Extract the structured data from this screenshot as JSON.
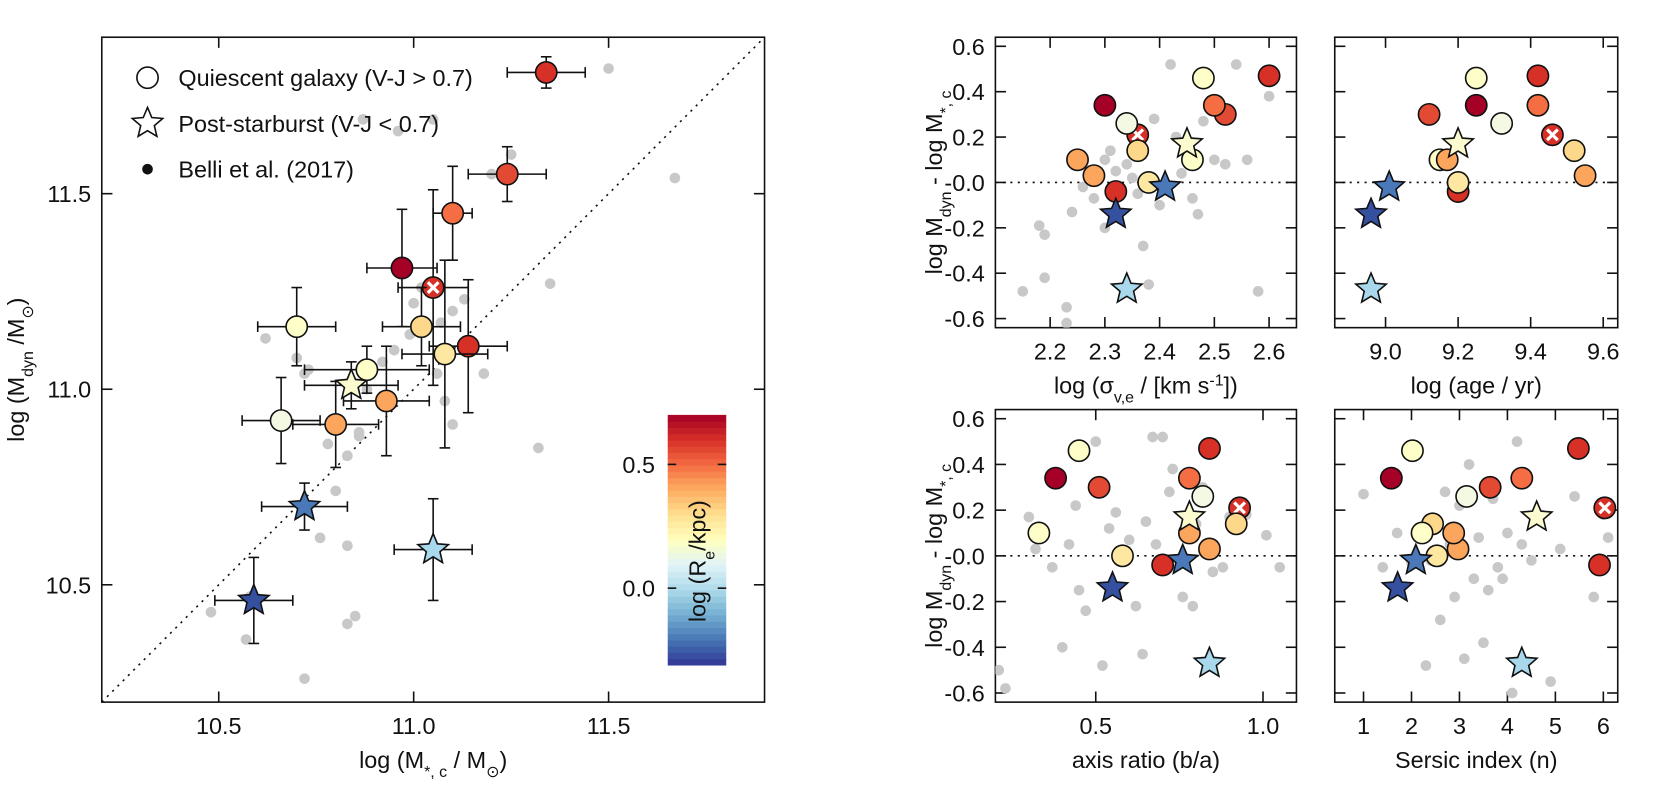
{
  "chart_data": [
    {
      "type": "scatter",
      "xlabel": [
        "log (M",
        "*, c",
        " / M",
        "⊙",
        ")"
      ],
      "ylabel": [
        "log (M",
        "dyn",
        " /M",
        "⊙",
        ")"
      ],
      "xlim": [
        10.2,
        11.9
      ],
      "ylim": [
        10.2,
        11.9
      ],
      "xticks": [
        10.5,
        {
          "value": 11,
          "label": "11.0"
        },
        11.5
      ],
      "yticks": [
        10.5,
        {
          "value": 11,
          "label": "11.0"
        },
        11.5
      ],
      "diagonal": true,
      "legend": "upper left",
      "series": [
        {
          "name": "Quiescent galaxy (V-J > 0.7)",
          "marker": "circle",
          "x": [
            11.34,
            11.24,
            11.1,
            10.97,
            11.05,
            10.7,
            11.02,
            11.14,
            11.08,
            10.88,
            10.93,
            10.66,
            10.8
          ],
          "y": [
            11.81,
            11.55,
            11.45,
            11.31,
            11.26,
            11.16,
            11.16,
            11.11,
            11.09,
            11.05,
            10.97,
            10.92,
            10.91
          ],
          "xerr": [
            0.1,
            0.1,
            0.05,
            0.09,
            0.09,
            0.1,
            0.1,
            0.1,
            0.11,
            0.16,
            0.11,
            0.1,
            0.11
          ],
          "yerr": [
            0.04,
            0.07,
            0.12,
            0.15,
            0.25,
            0.1,
            0.1,
            0.17,
            0.24,
            0.06,
            0.14,
            0.11,
            0.11
          ],
          "colors": [
            "#d73027",
            "#e34a33",
            "#f46d43",
            "#a50026",
            "#d73027",
            "#fefec8",
            "#fdd88a",
            "#d73027",
            "#fee7a0",
            "#fefec8",
            "#fca55d",
            "#f3f9e3",
            "#fca55d"
          ],
          "markers": [
            "circle",
            "circle",
            "circle",
            "circle",
            "crossed",
            "circle",
            "circle",
            "circle",
            "circle",
            "circle",
            "circle",
            "circle",
            "circle"
          ]
        },
        {
          "name": "Post-starburst (V-J < 0.7)",
          "marker": "star",
          "x": [
            10.84,
            10.72,
            11.05,
            10.59
          ],
          "y": [
            11.01,
            10.7,
            10.59,
            10.46
          ],
          "xerr": [
            0.12,
            0.11,
            0.1,
            0.1
          ],
          "yerr": [
            0.06,
            0.06,
            0.13,
            0.11
          ],
          "colors": [
            "#fcfbd0",
            "#4a78b8",
            "#a9d8ec",
            "#34509f"
          ]
        },
        {
          "name": "Belli et al. (2017)",
          "marker": "dot",
          "color": "#c8c8c8",
          "x": [
            10.48,
            10.57,
            10.58,
            10.72,
            10.76,
            10.83,
            10.85,
            10.83,
            10.8,
            10.78,
            10.83,
            10.86,
            10.62,
            10.7,
            10.72,
            10.73,
            10.86,
            10.88,
            10.92,
            10.95,
            10.99,
            11.0,
            11.02,
            11.06,
            11.07,
            11.1,
            11.13,
            11.08,
            11.1,
            11.05,
            11.18,
            11.2,
            11.25,
            11.35,
            11.32,
            11.5,
            11.67,
            10.96,
            10.87
          ],
          "y": [
            10.43,
            10.36,
            10.47,
            10.26,
            10.62,
            10.4,
            10.42,
            10.6,
            10.74,
            10.86,
            10.83,
            10.88,
            11.13,
            11.08,
            11.04,
            11.05,
            10.89,
            11.0,
            11.07,
            11.1,
            11.14,
            11.22,
            11.26,
            11.04,
            11.17,
            11.2,
            11.23,
            10.97,
            10.91,
            11.69,
            11.04,
            11.55,
            11.6,
            11.27,
            10.85,
            11.82,
            11.54,
            11.66,
            11.69
          ]
        }
      ],
      "colorbar": {
        "label": [
          "log (R",
          "e",
          "/kpc)"
        ],
        "lim": [
          -0.31,
          0.7
        ],
        "ticks": [
          {
            "value": 0,
            "label": "0.0"
          },
          0.5
        ],
        "colors": [
          "#313695",
          "#4575b4",
          "#74add1",
          "#abd9e9",
          "#e0f3f8",
          "#ffffbf",
          "#fee090",
          "#fdae61",
          "#f46d43",
          "#d73027",
          "#a50026"
        ]
      }
    },
    {
      "type": "scatter",
      "xlabel": [
        "log (σ",
        "v,e",
        " / [km s",
        "-1",
        "])"
      ],
      "ylabel": [
        "log M",
        "dyn",
        " - log M",
        "*, c"
      ],
      "xlim": [
        2.1,
        2.65
      ],
      "ylim": [
        -0.64,
        0.64
      ],
      "xticks": [
        2.2,
        2.3,
        2.4,
        2.5,
        2.6
      ],
      "yticks": [
        0.6,
        0.4,
        0.2,
        {
          "value": 0,
          "label": "-0.0"
        },
        -0.2,
        -0.4,
        -0.6
      ],
      "hline": 0,
      "series": [
        {
          "marker": "circle",
          "x": [
            2.6,
            2.52,
            2.5,
            2.3,
            2.36,
            2.48,
            2.36,
            2.32,
            2.38,
            2.46,
            2.28,
            2.34,
            2.25
          ],
          "y": [
            0.47,
            0.3,
            0.34,
            0.34,
            0.21,
            0.46,
            0.14,
            -0.04,
            0.0,
            0.1,
            0.03,
            0.26,
            0.1
          ],
          "colors": [
            "#d73027",
            "#e34a33",
            "#f46d43",
            "#a50026",
            "#d73027",
            "#fefec8",
            "#fdd88a",
            "#d73027",
            "#fee7a0",
            "#fefec8",
            "#fca55d",
            "#f3f9e3",
            "#fca55d"
          ],
          "markers": [
            "circle",
            "circle",
            "circle",
            "circle",
            "crossed",
            "circle",
            "circle",
            "circle",
            "circle",
            "circle",
            "circle",
            "circle",
            "circle"
          ]
        },
        {
          "marker": "star",
          "x": [
            2.45,
            2.41,
            2.34,
            2.32
          ],
          "y": [
            0.17,
            -0.02,
            -0.47,
            -0.14
          ],
          "colors": [
            "#fcfbd0",
            "#4a78b8",
            "#a9d8ec",
            "#34509f"
          ]
        },
        {
          "marker": "dot",
          "color": "#c8c8c8",
          "x": [
            2.15,
            2.18,
            2.19,
            2.19,
            2.23,
            2.23,
            2.24,
            2.26,
            2.27,
            2.28,
            2.29,
            2.3,
            2.3,
            2.31,
            2.32,
            2.34,
            2.35,
            2.36,
            2.37,
            2.38,
            2.39,
            2.4,
            2.42,
            2.43,
            2.44,
            2.46,
            2.47,
            2.48,
            2.5,
            2.52,
            2.54,
            2.56,
            2.58,
            2.6
          ],
          "y": [
            -0.48,
            -0.19,
            -0.23,
            -0.42,
            -0.55,
            -0.62,
            -0.13,
            -0.02,
            0.02,
            -0.07,
            0.33,
            -0.2,
            0.1,
            0.14,
            0.05,
            0.08,
            0.02,
            -0.05,
            -0.28,
            -0.45,
            0.28,
            -0.1,
            0.52,
            0.2,
            0.04,
            -0.07,
            -0.14,
            0.27,
            0.1,
            0.08,
            0.52,
            0.1,
            -0.48,
            0.38
          ]
        }
      ]
    },
    {
      "type": "scatter",
      "xlabel": [
        "log (age / yr)"
      ],
      "xlim": [
        8.86,
        9.64
      ],
      "ylim": [
        -0.64,
        0.64
      ],
      "xticks": [
        {
          "value": 9,
          "label": "9.0"
        },
        9.2,
        9.4,
        9.6
      ],
      "yticks": [
        0.6,
        0.4,
        0.2,
        0,
        -0.2,
        -0.4,
        -0.6
      ],
      "ytick_labels": false,
      "hline": 0,
      "series": [
        {
          "marker": "circle",
          "x": [
            9.42,
            9.12,
            9.42,
            9.25,
            9.46,
            9.25,
            9.52,
            9.2,
            9.2,
            9.15,
            9.55,
            9.32,
            9.17
          ],
          "y": [
            0.47,
            0.3,
            0.34,
            0.34,
            0.21,
            0.46,
            0.14,
            -0.04,
            0.0,
            0.1,
            0.03,
            0.26,
            0.1
          ],
          "colors": [
            "#d73027",
            "#e34a33",
            "#f46d43",
            "#a50026",
            "#d73027",
            "#fefec8",
            "#fdd88a",
            "#d73027",
            "#fee7a0",
            "#fefec8",
            "#fca55d",
            "#f3f9e3",
            "#fca55d"
          ],
          "markers": [
            "circle",
            "circle",
            "circle",
            "circle",
            "crossed",
            "circle",
            "circle",
            "circle",
            "circle",
            "circle",
            "circle",
            "circle",
            "circle"
          ]
        },
        {
          "marker": "star",
          "x": [
            9.2,
            9.01,
            8.96,
            8.96
          ],
          "y": [
            0.17,
            -0.02,
            -0.47,
            -0.14
          ],
          "colors": [
            "#fcfbd0",
            "#4a78b8",
            "#a9d8ec",
            "#34509f"
          ]
        }
      ]
    },
    {
      "type": "scatter",
      "xlabel": [
        "axis ratio (b/a)"
      ],
      "ylabel": [
        "log M",
        "dyn",
        " - log M",
        "*, c"
      ],
      "xlim": [
        0.2,
        1.1
      ],
      "ylim": [
        -0.64,
        0.64
      ],
      "xticks": [
        0.5,
        {
          "value": 1,
          "label": "1.0"
        }
      ],
      "yticks": [
        0.6,
        0.4,
        0.2,
        {
          "value": 0,
          "label": "-0.0"
        },
        -0.2,
        -0.4,
        -0.6
      ],
      "hline": 0,
      "series": [
        {
          "marker": "circle",
          "x": [
            0.84,
            0.51,
            0.78,
            0.38,
            0.93,
            0.45,
            0.92,
            0.7,
            0.58,
            0.33,
            0.84,
            0.82,
            0.78
          ],
          "y": [
            0.47,
            0.3,
            0.34,
            0.34,
            0.21,
            0.46,
            0.14,
            -0.04,
            0.0,
            0.1,
            0.03,
            0.26,
            0.1
          ],
          "colors": [
            "#d73027",
            "#e34a33",
            "#f46d43",
            "#a50026",
            "#d73027",
            "#fefec8",
            "#fdd88a",
            "#d73027",
            "#fee7a0",
            "#fefec8",
            "#fca55d",
            "#f3f9e3",
            "#fca55d"
          ],
          "markers": [
            "circle",
            "circle",
            "circle",
            "circle",
            "crossed",
            "circle",
            "circle",
            "circle",
            "circle",
            "circle",
            "circle",
            "circle",
            "circle"
          ]
        },
        {
          "marker": "star",
          "x": [
            0.78,
            0.76,
            0.84,
            0.55
          ],
          "y": [
            0.17,
            -0.02,
            -0.47,
            -0.14
          ],
          "colors": [
            "#fcfbd0",
            "#4a78b8",
            "#a9d8ec",
            "#34509f"
          ]
        },
        {
          "marker": "dot",
          "color": "#c8c8c8",
          "x": [
            0.21,
            0.23,
            0.3,
            0.32,
            0.37,
            0.4,
            0.42,
            0.44,
            0.45,
            0.47,
            0.5,
            0.52,
            0.54,
            0.56,
            0.58,
            0.6,
            0.62,
            0.64,
            0.65,
            0.67,
            0.68,
            0.7,
            0.72,
            0.73,
            0.76,
            0.79,
            0.8,
            0.82,
            0.85,
            0.88,
            0.9,
            0.95,
            1.01,
            1.05
          ],
          "y": [
            -0.5,
            -0.58,
            0.17,
            0.03,
            -0.05,
            -0.4,
            0.05,
            0.22,
            -0.15,
            -0.24,
            0.5,
            -0.48,
            0.12,
            0.19,
            -0.02,
            0.07,
            -0.22,
            -0.43,
            0.15,
            0.52,
            0.05,
            0.52,
            0.28,
            0.38,
            -0.18,
            -0.22,
            0.14,
            0.3,
            -0.07,
            -0.05,
            0.17,
            0.18,
            0.09,
            -0.05
          ]
        }
      ]
    },
    {
      "type": "scatter",
      "xlabel": [
        "Sersic index (n)"
      ],
      "xlim": [
        0.4,
        6.3
      ],
      "ylim": [
        -0.64,
        0.64
      ],
      "xticks": [
        1,
        2,
        3,
        4,
        5,
        6
      ],
      "yticks": [
        0.6,
        0.4,
        0.2,
        0,
        -0.2,
        -0.4,
        -0.6
      ],
      "ytick_labels": false,
      "hline": 0,
      "series": [
        {
          "marker": "circle",
          "x": [
            5.48,
            3.64,
            4.3,
            1.58,
            6.03,
            2.02,
            2.44,
            5.92,
            2.53,
            2.22,
            2.97,
            3.15,
            2.88
          ],
          "y": [
            0.47,
            0.3,
            0.34,
            0.34,
            0.21,
            0.46,
            0.14,
            -0.04,
            0.0,
            0.1,
            0.03,
            0.26,
            0.1
          ],
          "colors": [
            "#d73027",
            "#e34a33",
            "#f46d43",
            "#a50026",
            "#d73027",
            "#fefec8",
            "#fdd88a",
            "#d73027",
            "#fee7a0",
            "#fefec8",
            "#fca55d",
            "#f3f9e3",
            "#fca55d"
          ],
          "markers": [
            "circle",
            "circle",
            "circle",
            "circle",
            "crossed",
            "circle",
            "circle",
            "circle",
            "circle",
            "circle",
            "circle",
            "circle",
            "circle"
          ]
        },
        {
          "marker": "star",
          "x": [
            4.61,
            2.09,
            4.3,
            1.71
          ],
          "y": [
            0.17,
            -0.02,
            -0.47,
            -0.14
          ],
          "colors": [
            "#fcfbd0",
            "#4a78b8",
            "#a9d8ec",
            "#34509f"
          ]
        },
        {
          "marker": "dot",
          "color": "#c8c8c8",
          "x": [
            1.0,
            1.4,
            1.7,
            2.0,
            2.3,
            2.4,
            2.6,
            2.7,
            2.8,
            2.9,
            3.0,
            3.1,
            3.2,
            3.3,
            3.4,
            3.5,
            3.6,
            3.7,
            3.8,
            3.9,
            4.0,
            4.1,
            4.2,
            4.3,
            4.5,
            4.7,
            4.9,
            5.1,
            5.4,
            5.8,
            6.0,
            6.1
          ],
          "y": [
            0.27,
            -0.05,
            0.1,
            -0.03,
            -0.48,
            -0.02,
            -0.28,
            0.28,
            0.05,
            -0.18,
            0.22,
            -0.45,
            0.4,
            -0.1,
            0.08,
            -0.38,
            -0.15,
            0.25,
            -0.05,
            -0.1,
            0.1,
            -0.6,
            0.5,
            0.05,
            -0.02,
            0.18,
            -0.55,
            0.03,
            0.26,
            -0.18,
            0.18,
            0.08
          ]
        }
      ]
    }
  ]
}
